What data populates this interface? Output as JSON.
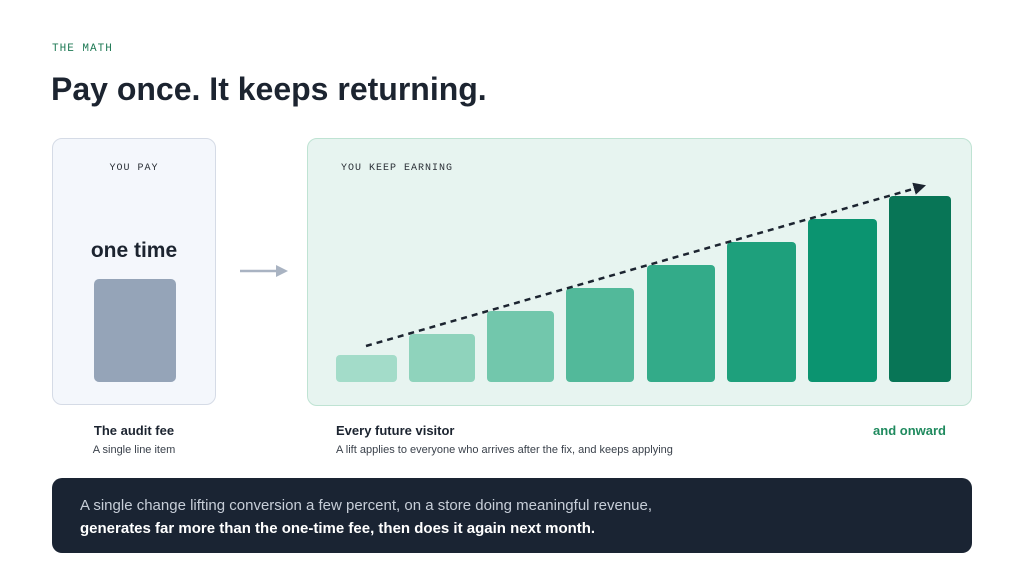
{
  "header": {
    "eyebrow": "THE MATH",
    "title": "Pay once. It keeps returning."
  },
  "left_card": {
    "label": "YOU PAY",
    "headline": "one time",
    "caption_title": "The audit fee",
    "caption_text": "A single line item"
  },
  "right_card": {
    "label": "YOU KEEP EARNING",
    "caption_title": "Every future visitor",
    "caption_text": "A lift applies to everyone who arrives after the fix, and keeps applying",
    "caption_right": "and onward"
  },
  "banner": {
    "line1": "A single change lifting conversion a few percent, on a store doing meaningful revenue,",
    "line2": "generates far more than the one-time fee, then does it again next month."
  }
}
